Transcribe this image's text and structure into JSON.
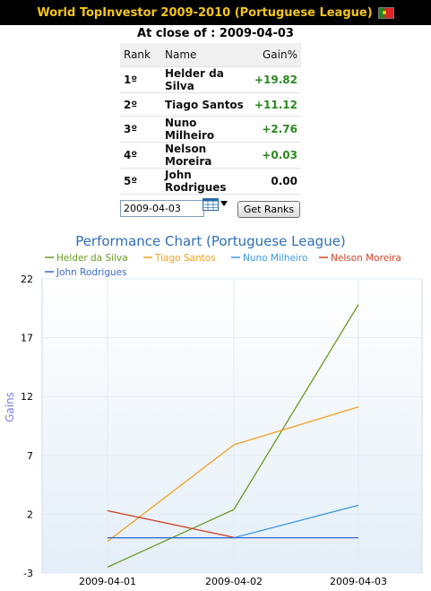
{
  "header": {
    "title": "World TopInvestor 2009-2010 (Portuguese League)",
    "flag_icon": "portugal-flag-icon"
  },
  "close_line": "At close of : 2009-04-03",
  "ranking": {
    "columns": [
      "Rank",
      "Name",
      "Gain%"
    ],
    "rows": [
      {
        "rank": "1º",
        "name": "Helder da Silva",
        "gain": "+19.82"
      },
      {
        "rank": "2º",
        "name": "Tiago Santos",
        "gain": "+11.12"
      },
      {
        "rank": "3º",
        "name": "Nuno Milheiro",
        "gain": "+2.76"
      },
      {
        "rank": "4º",
        "name": "Nelson Moreira",
        "gain": "+0.03"
      },
      {
        "rank": "5º",
        "name": "John Rodrigues",
        "gain": "0.00"
      }
    ]
  },
  "controls": {
    "date_value": "2009-04-03",
    "calendar_icon": "calendar-icon",
    "get_ranks_label": "Get Ranks"
  },
  "colors": {
    "accent_title": "#f5c518",
    "gain_positive": "#2a8a1f"
  },
  "chart_data": {
    "type": "line",
    "title": "Performance Chart (Portuguese League)",
    "ylabel": "Gains",
    "xlabel": "",
    "x": [
      "2009-04-01",
      "2009-04-02",
      "2009-04-03"
    ],
    "ylim": [
      -3,
      22
    ],
    "yticks": [
      22,
      17,
      12,
      7,
      2,
      -3
    ],
    "grid": true,
    "legend_position": "top",
    "series": [
      {
        "name": "Helder da Silva",
        "color": "#6a9a1f",
        "values": [
          -2.5,
          2.4,
          19.82
        ]
      },
      {
        "name": "Tiago Santos",
        "color": "#f2a023",
        "values": [
          -0.3,
          7.9,
          11.12
        ]
      },
      {
        "name": "Nuno Milheiro",
        "color": "#3b9ae0",
        "values": [
          0.0,
          0.0,
          2.76
        ]
      },
      {
        "name": "Nelson Moreira",
        "color": "#d0452a",
        "values": [
          2.3,
          0.03,
          null
        ]
      },
      {
        "name": "John Rodrigues",
        "color": "#3a6ac8",
        "values": [
          0.0,
          0.0,
          0.0
        ]
      }
    ]
  }
}
